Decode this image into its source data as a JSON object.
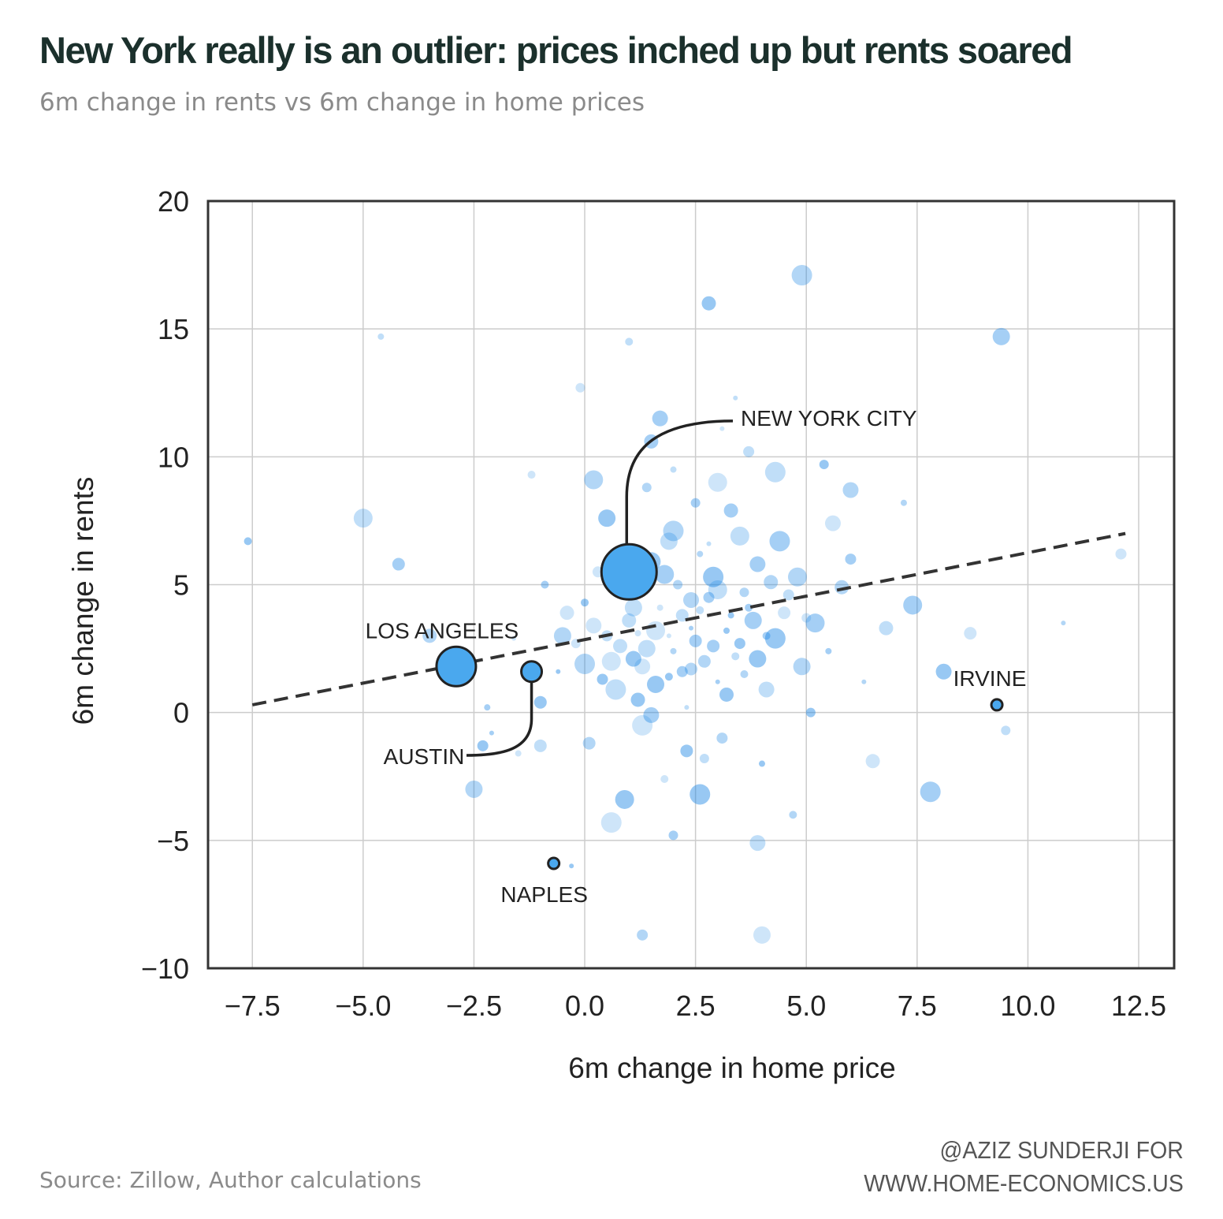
{
  "header": {
    "title": "New York really is an outlier: prices inched up but rents soared",
    "subtitle": "6m change in rents vs 6m change in home prices"
  },
  "footer": {
    "source": "Source: Zillow, Author calculations",
    "credit_line1": "@AZIZ SUNDERJI FOR",
    "credit_line2": "WWW.HOME-ECONOMICS.US"
  },
  "colors": {
    "bubble": "#1e88e5",
    "highlight": "#4aa8ee",
    "outline": "#222222",
    "trendline": "#333333",
    "grid": "#cccccc"
  },
  "chart_data": {
    "type": "scatter",
    "title": "New York really is an outlier: prices inched up but rents soared",
    "subtitle": "6m change in rents vs 6m change in home prices",
    "xlabel": "6m change in home price",
    "ylabel": "6m change in rents",
    "xlim": [
      -8.5,
      13.3
    ],
    "ylim": [
      -10,
      20
    ],
    "x_ticks": [
      -7.5,
      -5.0,
      -2.5,
      0.0,
      2.5,
      5.0,
      7.5,
      10.0,
      12.5
    ],
    "x_tick_labels": [
      "−7.5",
      "−5.0",
      "−2.5",
      "0.0",
      "2.5",
      "5.0",
      "7.5",
      "10.0",
      "12.5"
    ],
    "y_ticks": [
      -10,
      -5,
      0,
      5,
      10,
      15,
      20
    ],
    "y_tick_labels": [
      "−10",
      "−5",
      "0",
      "5",
      "10",
      "15",
      "20"
    ],
    "grid": true,
    "trendline": {
      "style": "dashed",
      "x": [
        -7.5,
        12.2
      ],
      "y": [
        0.3,
        7.0
      ]
    },
    "highlighted": [
      {
        "label": "NEW YORK CITY",
        "x": 1.0,
        "y": 5.5
      },
      {
        "label": "LOS ANGELES",
        "x": -2.9,
        "y": 1.8
      },
      {
        "label": "AUSTIN",
        "x": -1.2,
        "y": 1.6
      },
      {
        "label": "IRVINE",
        "x": 9.3,
        "y": 0.3
      },
      {
        "label": "NAPLES",
        "x": -0.7,
        "y": -5.9
      }
    ],
    "background_points": [
      {
        "x": 1.9,
        "y": 3.0
      },
      {
        "x": 2.8,
        "y": 4.5
      },
      {
        "x": 1.4,
        "y": 2.5
      },
      {
        "x": 3.2,
        "y": 3.2
      },
      {
        "x": 2.4,
        "y": 1.7
      },
      {
        "x": 0.6,
        "y": 2.0
      },
      {
        "x": 3.7,
        "y": 4.1
      },
      {
        "x": 1.0,
        "y": 3.6
      },
      {
        "x": 4.3,
        "y": 2.9
      },
      {
        "x": 2.1,
        "y": 5.0
      },
      {
        "x": 0.2,
        "y": 3.4
      },
      {
        "x": 3.0,
        "y": 1.2
      },
      {
        "x": 4.6,
        "y": 4.6
      },
      {
        "x": 1.6,
        "y": 1.1
      },
      {
        "x": 2.6,
        "y": 6.2
      },
      {
        "x": 0.8,
        "y": 4.7
      },
      {
        "x": 5.2,
        "y": 3.5
      },
      {
        "x": 3.4,
        "y": 2.2
      },
      {
        "x": 1.2,
        "y": 0.5
      },
      {
        "x": 2.0,
        "y": 7.1
      },
      {
        "x": -0.2,
        "y": 2.7
      },
      {
        "x": 3.9,
        "y": 5.8
      },
      {
        "x": 2.3,
        "y": 0.2
      },
      {
        "x": 0.4,
        "y": 1.3
      },
      {
        "x": 4.9,
        "y": 1.8
      },
      {
        "x": 1.7,
        "y": 4.1
      },
      {
        "x": 2.9,
        "y": 2.6
      },
      {
        "x": 3.5,
        "y": 6.9
      },
      {
        "x": 0.0,
        "y": 4.3
      },
      {
        "x": 5.8,
        "y": 4.9
      },
      {
        "x": 1.3,
        "y": -0.5
      },
      {
        "x": 2.5,
        "y": 8.2
      },
      {
        "x": 4.1,
        "y": 0.9
      },
      {
        "x": -0.6,
        "y": 1.6
      },
      {
        "x": 3.1,
        "y": -1.0
      },
      {
        "x": 0.9,
        "y": 6.3
      },
      {
        "x": 5.5,
        "y": 2.4
      },
      {
        "x": 2.2,
        "y": 3.8
      },
      {
        "x": 1.5,
        "y": 5.9
      },
      {
        "x": 3.6,
        "y": 1.5
      },
      {
        "x": -0.4,
        "y": 3.9
      },
      {
        "x": 4.4,
        "y": 6.7
      },
      {
        "x": 2.7,
        "y": -1.8
      },
      {
        "x": 1.1,
        "y": 2.1
      },
      {
        "x": 6.3,
        "y": 1.2
      },
      {
        "x": 0.3,
        "y": 5.5
      },
      {
        "x": 3.8,
        "y": 3.6
      },
      {
        "x": 2.0,
        "y": 9.5
      },
      {
        "x": -1.0,
        "y": 0.4
      },
      {
        "x": 4.8,
        "y": 5.3
      },
      {
        "x": 1.8,
        "y": -2.6
      },
      {
        "x": 3.3,
        "y": 7.9
      },
      {
        "x": 0.7,
        "y": 0.9
      },
      {
        "x": 5.1,
        "y": 0.0
      },
      {
        "x": 2.4,
        "y": 4.4
      },
      {
        "x": -1.6,
        "y": 2.9
      },
      {
        "x": 6.0,
        "y": 6.0
      },
      {
        "x": 1.9,
        "y": 6.7
      },
      {
        "x": 4.0,
        "y": -2.0
      },
      {
        "x": 0.1,
        "y": -1.2
      },
      {
        "x": 3.0,
        "y": 9.0
      },
      {
        "x": -0.9,
        "y": 5.0
      },
      {
        "x": 6.8,
        "y": 3.3
      },
      {
        "x": 2.6,
        "y": -3.2
      },
      {
        "x": 1.4,
        "y": 8.8
      },
      {
        "x": 5.6,
        "y": 7.4
      },
      {
        "x": -2.1,
        "y": -0.8
      },
      {
        "x": 3.7,
        "y": 10.2
      },
      {
        "x": 0.5,
        "y": 7.6
      },
      {
        "x": 7.2,
        "y": 8.2
      },
      {
        "x": 8.7,
        "y": 3.1
      },
      {
        "x": 7.4,
        "y": 4.2
      },
      {
        "x": 1.0,
        "y": 14.5
      },
      {
        "x": 2.8,
        "y": 16.0
      },
      {
        "x": 4.9,
        "y": 17.1
      },
      {
        "x": -0.1,
        "y": 12.7
      },
      {
        "x": 1.7,
        "y": 11.5
      },
      {
        "x": 3.4,
        "y": 12.3
      },
      {
        "x": -2.3,
        "y": -1.3
      },
      {
        "x": -2.5,
        "y": -3.0
      },
      {
        "x": -1.5,
        "y": -1.6
      },
      {
        "x": -4.2,
        "y": 5.8
      },
      {
        "x": -5.0,
        "y": 7.6
      },
      {
        "x": -7.6,
        "y": 6.7
      },
      {
        "x": -3.5,
        "y": 3.0
      },
      {
        "x": 0.6,
        "y": -4.3
      },
      {
        "x": 2.0,
        "y": -4.8
      },
      {
        "x": 3.9,
        "y": -5.1
      },
      {
        "x": -0.3,
        "y": -6.0
      },
      {
        "x": 1.3,
        "y": -8.7
      },
      {
        "x": 4.0,
        "y": -8.7
      },
      {
        "x": -2.2,
        "y": 0.2
      },
      {
        "x": -1.0,
        "y": -1.3
      },
      {
        "x": 0.9,
        "y": -3.4
      },
      {
        "x": 4.7,
        "y": -4.0
      },
      {
        "x": 6.5,
        "y": -1.9
      },
      {
        "x": 7.8,
        "y": -3.1
      },
      {
        "x": 9.5,
        "y": -0.7
      },
      {
        "x": 8.1,
        "y": 1.6
      },
      {
        "x": 10.8,
        "y": 3.5
      },
      {
        "x": 12.1,
        "y": 6.2
      },
      {
        "x": 9.4,
        "y": 14.7
      },
      {
        "x": -4.6,
        "y": 14.7
      },
      {
        "x": 2.3,
        "y": -1.5
      },
      {
        "x": 0.2,
        "y": 9.1
      },
      {
        "x": -1.2,
        "y": 9.3
      },
      {
        "x": 1.5,
        "y": 10.6
      },
      {
        "x": 4.3,
        "y": 9.4
      },
      {
        "x": 5.4,
        "y": 9.7
      },
      {
        "x": 6.0,
        "y": 8.7
      },
      {
        "x": 3.1,
        "y": 11.1
      },
      {
        "x": 2.2,
        "y": 1.6
      },
      {
        "x": 1.1,
        "y": 4.1
      },
      {
        "x": 3.3,
        "y": 3.8
      },
      {
        "x": 2.7,
        "y": 2.0
      },
      {
        "x": 1.6,
        "y": 3.2
      },
      {
        "x": 4.1,
        "y": 3.0
      },
      {
        "x": 0.8,
        "y": 2.6
      },
      {
        "x": 2.9,
        "y": 5.3
      },
      {
        "x": 3.6,
        "y": 4.7
      },
      {
        "x": 1.3,
        "y": 1.8
      },
      {
        "x": 2.4,
        "y": 3.3
      },
      {
        "x": 0.5,
        "y": 3.0
      },
      {
        "x": 3.9,
        "y": 2.1
      },
      {
        "x": 2.0,
        "y": 2.4
      },
      {
        "x": 4.5,
        "y": 3.9
      },
      {
        "x": 1.8,
        "y": 5.4
      },
      {
        "x": 2.6,
        "y": 4.0
      },
      {
        "x": 3.2,
        "y": 0.7
      },
      {
        "x": 0.0,
        "y": 1.9
      },
      {
        "x": 5.0,
        "y": 3.7
      },
      {
        "x": 1.5,
        "y": -0.1
      },
      {
        "x": 2.8,
        "y": 6.6
      },
      {
        "x": 3.5,
        "y": 2.7
      },
      {
        "x": -0.5,
        "y": 3.0
      },
      {
        "x": 1.2,
        "y": 3.1
      },
      {
        "x": 2.5,
        "y": 2.8
      },
      {
        "x": 3.0,
        "y": 4.8
      },
      {
        "x": 1.9,
        "y": 1.4
      },
      {
        "x": 4.2,
        "y": 5.1
      }
    ]
  }
}
